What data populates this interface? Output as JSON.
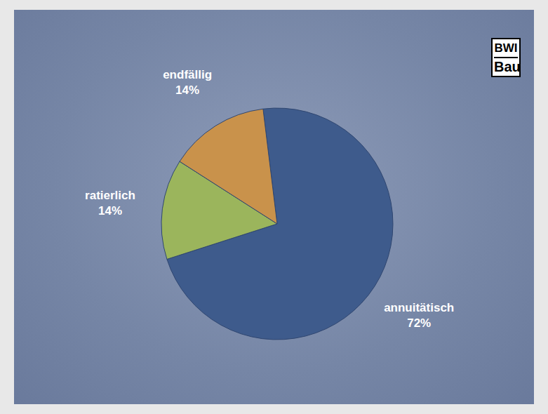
{
  "chart_data": {
    "type": "pie",
    "categories": [
      "annuitätisch",
      "ratierlich",
      "endfällig"
    ],
    "values": [
      72,
      14,
      14
    ],
    "value_labels": [
      "72%",
      "14%",
      "14%"
    ],
    "colors": [
      "#3e5b8c",
      "#9bb55c",
      "#c9924b"
    ],
    "data_labels": true,
    "annotations": [
      "BWI",
      "Bau"
    ]
  }
}
